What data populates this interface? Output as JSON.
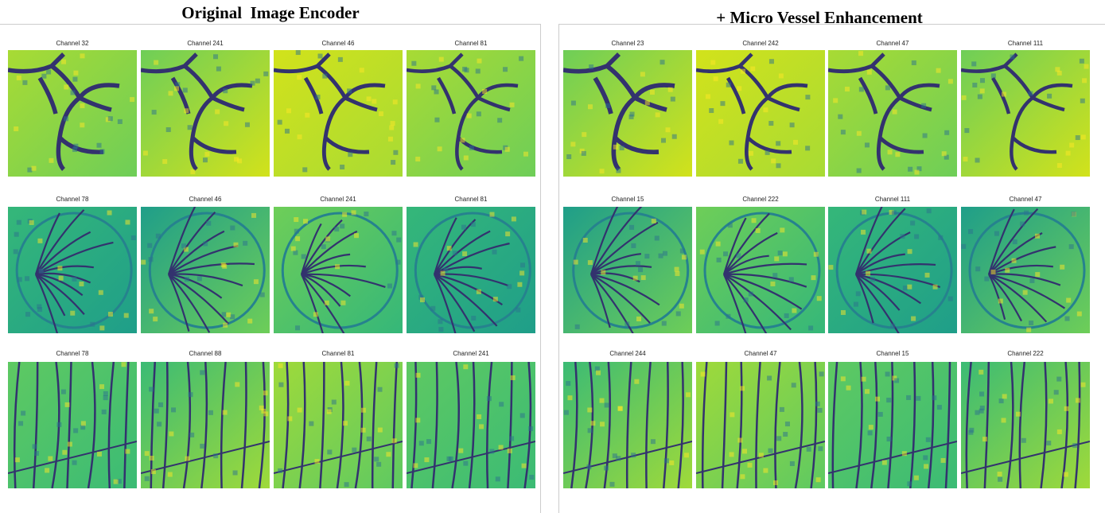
{
  "panels": [
    {
      "title": "Original  Image Encoder",
      "rows": [
        [
          "Channel 32",
          "Channel 241",
          "Channel 46",
          "Channel 81"
        ],
        [
          "Channel 78",
          "Channel 46",
          "Channel 241",
          "Channel 81"
        ],
        [
          "Channel 78",
          "Channel 88",
          "Channel 81",
          "Channel 241"
        ]
      ]
    },
    {
      "title": "+ Micro Vessel Enhancement",
      "rows": [
        [
          "Channel 23",
          "Channel 242",
          "Channel 47",
          "Channel 111"
        ],
        [
          "Channel 15",
          "Channel 222",
          "Channel 111",
          "Channel 47"
        ],
        [
          "Channel 244",
          "Channel 47",
          "Channel 15",
          "Channel 222"
        ]
      ]
    }
  ]
}
